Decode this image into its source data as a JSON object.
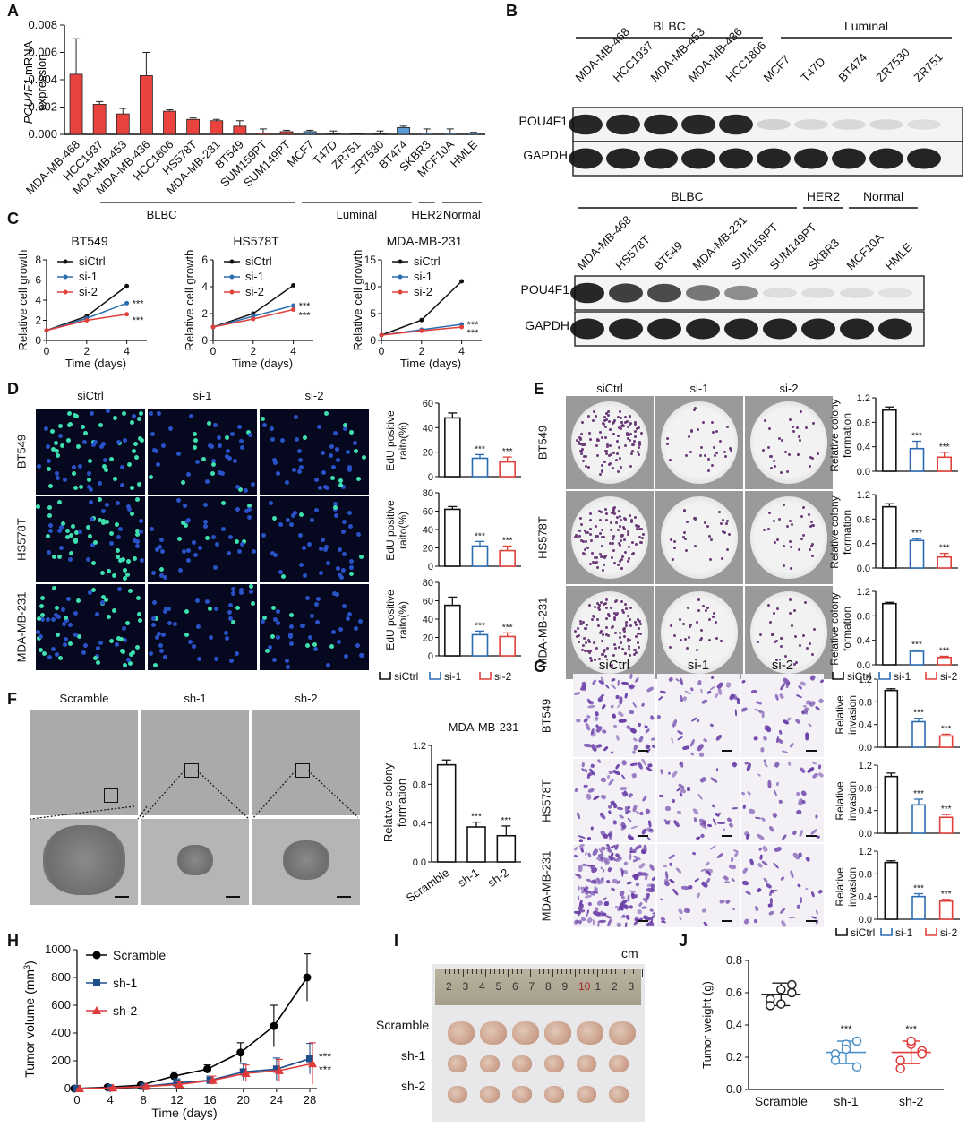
{
  "panels": {
    "A": "A",
    "B": "B",
    "C": "C",
    "D": "D",
    "E": "E",
    "F": "F",
    "G": "G",
    "H": "H",
    "I": "I",
    "J": "J"
  },
  "panelA": {
    "ylabel_gene": "POU4F1",
    "ylabel_rest": " mRNA",
    "ylabel_line2": "expression",
    "yticks": [
      "0.000",
      "0.002",
      "0.004",
      "0.006",
      "0.008"
    ],
    "groups": [
      {
        "label": "BLBC"
      },
      {
        "label": "Luminal"
      },
      {
        "label": "HER2"
      },
      {
        "label": "Normal"
      }
    ]
  },
  "panelB": {
    "top": {
      "groups": [
        {
          "label": "BLBC"
        },
        {
          "label": "Luminal"
        }
      ],
      "lanes": [
        "MDA-MB-468",
        "HCC1937",
        "MDA-MB-453",
        "MDA-MB-436",
        "HCC1806",
        "MCF7",
        "T47D",
        "BT474",
        "ZR7530",
        "ZR751"
      ],
      "rows": [
        "POU4F1",
        "GAPDH"
      ],
      "pou4f1_levels": [
        0.9,
        0.9,
        0.9,
        0.9,
        0.9,
        0.15,
        0.12,
        0.12,
        0.12,
        0.1
      ]
    },
    "bottom": {
      "groups": [
        {
          "label": "BLBC"
        },
        {
          "label": "HER2"
        },
        {
          "label": "Normal"
        }
      ],
      "lanes": [
        "MDA-MB-468",
        "HS578T",
        "BT549",
        "MDA-MB-231",
        "SUM159PT",
        "SUM149PT",
        "SKBR3",
        "MCF10A",
        "HMLE"
      ],
      "rows": [
        "POU4F1",
        "GAPDH"
      ],
      "pou4f1_levels": [
        0.9,
        0.8,
        0.75,
        0.55,
        0.45,
        0.1,
        0.1,
        0.1,
        0.08
      ]
    }
  },
  "panelC": {
    "ylabel": "Relative cell growth",
    "xlabel": "Time (days)",
    "legend": [
      "siCtrl",
      "si-1",
      "si-2"
    ],
    "titles": [
      "BT549",
      "HS578T",
      "MDA-MB-231"
    ],
    "sig": "***"
  },
  "panelD": {
    "cols": [
      "siCtrl",
      "si-1",
      "si-2"
    ],
    "rows": [
      "BT549",
      "HS578T",
      "MDA-MB-231"
    ],
    "ylabel_1": "EdU positive",
    "ylabel_2": "raito(%)",
    "legend": [
      "siCtrl",
      "si-1",
      "si-2"
    ],
    "sig": "***"
  },
  "panelE": {
    "cols": [
      "siCtrl",
      "si-1",
      "si-2"
    ],
    "rows": [
      "BT549",
      "HS578T",
      "MDA-MB-231"
    ],
    "ylabel_1": "Relative colony",
    "ylabel_2": "formation",
    "legend": [
      "siCtrl",
      "si-1",
      "si-2"
    ],
    "sig": "***"
  },
  "panelF": {
    "cols": [
      "Scramble",
      "sh-1",
      "sh-2"
    ],
    "chart_title": "MDA-MB-231",
    "ylabel_1": "Relative colony",
    "ylabel_2": "formation",
    "sig": "***"
  },
  "panelG": {
    "cols": [
      "siCtrl",
      "si-1",
      "si-2"
    ],
    "rows": [
      "BT549",
      "HS578T",
      "MDA-MB-231"
    ],
    "ylabel_1": "Relative",
    "ylabel_2": "invasion",
    "legend": [
      "siCtrl",
      "si-1",
      "si-2"
    ],
    "sig": "***"
  },
  "panelH": {
    "ylabel_a": "Tumor volume (mm",
    "ylabel_sup": "3",
    "ylabel_b": ")",
    "xlabel": "Time (days)",
    "legend": [
      "Scramble",
      "sh-1",
      "sh-2"
    ],
    "sig": "***"
  },
  "panelI": {
    "unit": "cm",
    "ruler_digits": [
      "2",
      "3",
      "4",
      "5",
      "6",
      "7",
      "8",
      "9",
      "10",
      "1",
      "2",
      "3"
    ],
    "rows": [
      "Scramble",
      "sh-1",
      "sh-2"
    ]
  },
  "panelJ": {
    "ylabel": "Tumor weight (g)",
    "sig": "***"
  },
  "colors": {
    "siCtrl": "#111111",
    "si1": "#2b6cb0",
    "si2": "#e0403a",
    "blbc": "#e8433f",
    "luminal": "#5b9bd5",
    "scramble": "#000000",
    "sh1": "#1f4e8c",
    "sh2": "#e03a3a"
  },
  "chart_data": [
    {
      "id": "A",
      "type": "bar",
      "ylim": [
        0,
        0.008
      ],
      "categories": [
        "MDA-MB-468",
        "HCC1937",
        "MDA-MB-453",
        "MDA-MB-436",
        "HCC1806",
        "HS578T",
        "MDA-MB-231",
        "BT549",
        "SUM159PT",
        "SUM149PT",
        "MCF7",
        "T47D",
        "ZR751",
        "ZR7530",
        "BT474",
        "SKBR3",
        "MCF10A",
        "HMLE"
      ],
      "values": [
        0.0044,
        0.0022,
        0.0015,
        0.0043,
        0.0017,
        0.0011,
        0.001,
        0.0006,
        0.0001,
        0.0002,
        0.0002,
        5e-05,
        4e-05,
        5e-05,
        0.0005,
        0.0001,
        0.0001,
        0.0001
      ],
      "errors": [
        0.0026,
        0.0002,
        0.0004,
        0.0017,
        0.0001,
        0.0001,
        0.0001,
        0.0004,
        0.0003,
        0.0001,
        0.0001,
        0.0002,
        5e-05,
        0.0002,
        0.0001,
        0.0003,
        0.0003,
        5e-05
      ],
      "groups": [
        "BLBC",
        "BLBC",
        "BLBC",
        "BLBC",
        "BLBC",
        "BLBC",
        "BLBC",
        "BLBC",
        "BLBC",
        "BLBC",
        "Luminal",
        "Luminal",
        "Luminal",
        "Luminal",
        "Luminal",
        "HER2",
        "Normal",
        "Normal"
      ]
    },
    {
      "id": "C1",
      "type": "line",
      "title": "BT549",
      "x": [
        0,
        2,
        4
      ],
      "ylim": [
        0,
        8
      ],
      "series": [
        {
          "name": "siCtrl",
          "values": [
            1,
            2.4,
            5.4
          ]
        },
        {
          "name": "si-1",
          "values": [
            1,
            2.2,
            3.7
          ]
        },
        {
          "name": "si-2",
          "values": [
            1,
            2.0,
            2.6
          ]
        }
      ]
    },
    {
      "id": "C2",
      "type": "line",
      "title": "HS578T",
      "x": [
        0,
        2,
        4
      ],
      "ylim": [
        0,
        6
      ],
      "series": [
        {
          "name": "siCtrl",
          "values": [
            1,
            2.0,
            4.1
          ]
        },
        {
          "name": "si-1",
          "values": [
            1,
            1.8,
            2.6
          ]
        },
        {
          "name": "si-2",
          "values": [
            1,
            1.6,
            2.3
          ]
        }
      ]
    },
    {
      "id": "C3",
      "type": "line",
      "title": "MDA-MB-231",
      "x": [
        0,
        2,
        4
      ],
      "ylim": [
        0,
        15
      ],
      "series": [
        {
          "name": "siCtrl",
          "values": [
            1,
            3.8,
            11
          ]
        },
        {
          "name": "si-1",
          "values": [
            1,
            2.0,
            3.0
          ]
        },
        {
          "name": "si-2",
          "values": [
            1,
            1.8,
            2.5
          ]
        }
      ]
    },
    {
      "id": "D1",
      "type": "bar",
      "categories": [
        "siCtrl",
        "si-1",
        "si-2"
      ],
      "values": [
        48,
        15,
        12
      ],
      "errors": [
        4,
        3,
        4
      ],
      "ylim": [
        0,
        60
      ]
    },
    {
      "id": "D2",
      "type": "bar",
      "categories": [
        "siCtrl",
        "si-1",
        "si-2"
      ],
      "values": [
        62,
        22,
        17
      ],
      "errors": [
        3,
        5,
        5
      ],
      "ylim": [
        0,
        80
      ]
    },
    {
      "id": "D3",
      "type": "bar",
      "categories": [
        "siCtrl",
        "si-1",
        "si-2"
      ],
      "values": [
        55,
        23,
        21
      ],
      "errors": [
        9,
        4,
        4
      ],
      "ylim": [
        0,
        80
      ]
    },
    {
      "id": "E1",
      "type": "bar",
      "categories": [
        "siCtrl",
        "si-1",
        "si-2"
      ],
      "values": [
        1.0,
        0.37,
        0.23
      ],
      "errors": [
        0.05,
        0.12,
        0.08
      ],
      "ylim": [
        0,
        1.2
      ]
    },
    {
      "id": "E2",
      "type": "bar",
      "categories": [
        "siCtrl",
        "si-1",
        "si-2"
      ],
      "values": [
        1.0,
        0.45,
        0.18
      ],
      "errors": [
        0.05,
        0.03,
        0.06
      ],
      "ylim": [
        0,
        1.2
      ]
    },
    {
      "id": "E3",
      "type": "bar",
      "categories": [
        "siCtrl",
        "si-1",
        "si-2"
      ],
      "values": [
        1.0,
        0.22,
        0.12
      ],
      "errors": [
        0.02,
        0.02,
        0.02
      ],
      "ylim": [
        0,
        1.2
      ]
    },
    {
      "id": "F",
      "type": "bar",
      "title": "MDA-MB-231",
      "categories": [
        "Scramble",
        "sh-1",
        "sh-2"
      ],
      "values": [
        1.0,
        0.36,
        0.27
      ],
      "errors": [
        0.05,
        0.05,
        0.1
      ],
      "ylim": [
        0,
        1.2
      ]
    },
    {
      "id": "G1",
      "type": "bar",
      "categories": [
        "siCtrl",
        "si-1",
        "si-2"
      ],
      "values": [
        1.0,
        0.45,
        0.2
      ],
      "errors": [
        0.03,
        0.06,
        0.03
      ],
      "ylim": [
        0,
        1.2
      ]
    },
    {
      "id": "G2",
      "type": "bar",
      "categories": [
        "siCtrl",
        "si-1",
        "si-2"
      ],
      "values": [
        1.0,
        0.5,
        0.28
      ],
      "errors": [
        0.06,
        0.1,
        0.05
      ],
      "ylim": [
        0,
        1.2
      ]
    },
    {
      "id": "G3",
      "type": "bar",
      "categories": [
        "siCtrl",
        "si-1",
        "si-2"
      ],
      "values": [
        1.0,
        0.4,
        0.32
      ],
      "errors": [
        0.03,
        0.05,
        0.03
      ],
      "ylim": [
        0,
        1.2
      ]
    },
    {
      "id": "H",
      "type": "line",
      "x": [
        0,
        4,
        8,
        12,
        16,
        20,
        24,
        28
      ],
      "ylim": [
        0,
        1000
      ],
      "series": [
        {
          "name": "Scramble",
          "values": [
            0,
            10,
            25,
            90,
            140,
            260,
            450,
            800
          ],
          "errors": [
            0,
            5,
            10,
            30,
            30,
            70,
            150,
            170
          ]
        },
        {
          "name": "sh-1",
          "values": [
            0,
            5,
            15,
            40,
            60,
            120,
            140,
            215
          ],
          "errors": [
            0,
            5,
            10,
            30,
            30,
            60,
            80,
            110
          ]
        },
        {
          "name": "sh-2",
          "values": [
            0,
            5,
            15,
            30,
            60,
            110,
            130,
            180
          ],
          "errors": [
            0,
            5,
            10,
            20,
            30,
            60,
            80,
            150
          ]
        }
      ]
    },
    {
      "id": "J",
      "type": "scatter",
      "categories": [
        "Scramble",
        "sh-1",
        "sh-2"
      ],
      "ylim": [
        0,
        0.8
      ],
      "points": [
        [
          0.56,
          0.62,
          0.6,
          0.52,
          0.53,
          0.65
        ],
        [
          0.22,
          0.28,
          0.14,
          0.18,
          0.25,
          0.3
        ],
        [
          0.18,
          0.28,
          0.24,
          0.13,
          0.3,
          0.22
        ]
      ],
      "means": [
        0.59,
        0.23,
        0.23
      ],
      "sd": [
        0.07,
        0.07,
        0.07
      ]
    }
  ]
}
